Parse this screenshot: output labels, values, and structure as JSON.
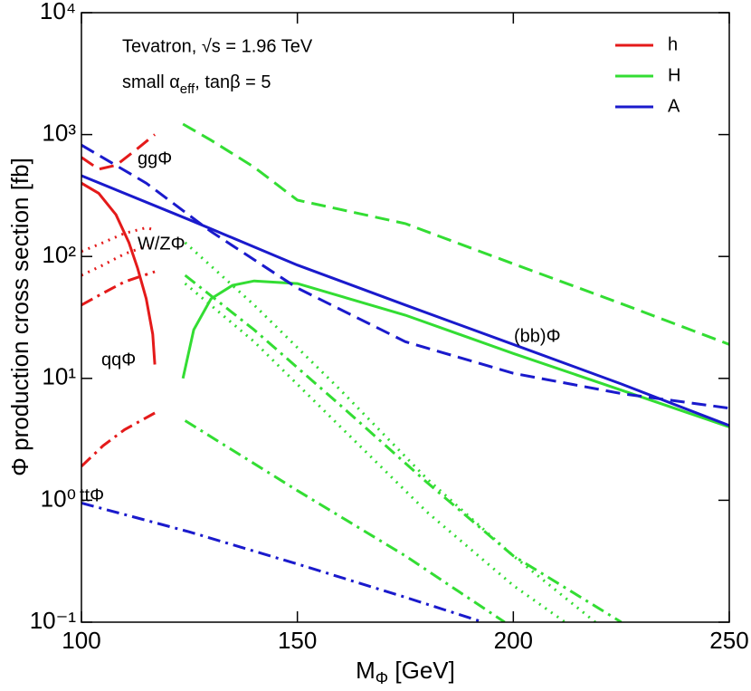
{
  "chart_data": {
    "type": "line",
    "ylog": true,
    "ylabel": "Φ production cross section [fb]",
    "xlabel": "M",
    "xlabel_sub": "Φ",
    "xlabel_end": " [GeV]",
    "note1": "Tevatron, √s = 1.96 TeV",
    "note2": "small α",
    "note2_sub": "eff",
    "note2_end": ", tanβ = 5",
    "annotations": [
      "ggΦ",
      "W/ZΦ",
      "qqΦ",
      "ttΦ",
      "(bb)Φ"
    ],
    "xlim": [
      100,
      250
    ],
    "xticks": [
      100,
      150,
      200,
      250
    ],
    "ylim": [
      0.1,
      10000
    ],
    "yticks": [
      {
        "value": 0.1,
        "label": "10⁻¹"
      },
      {
        "value": 1,
        "label": "10⁰"
      },
      {
        "value": 10,
        "label": "10¹"
      },
      {
        "value": 100,
        "label": "10²"
      },
      {
        "value": 1000,
        "label": "10³"
      },
      {
        "value": 10000,
        "label": "10⁴"
      }
    ],
    "legend": "upper right",
    "series": [
      {
        "name": "h",
        "color": "#e41a1a",
        "curves": [
          {
            "style": "dashed",
            "x": [
              100,
              104,
              108,
              112,
              117
            ],
            "values": [
              650,
              520,
              560,
              720,
              1000
            ]
          },
          {
            "style": "dotted",
            "x": [
              100,
              105,
              110,
              115,
              117
            ],
            "values": [
              110,
              130,
              155,
              172,
              165
            ]
          },
          {
            "style": "dotted",
            "x": [
              100,
              105,
              110,
              116
            ],
            "values": [
              70,
              85,
              105,
              125
            ]
          },
          {
            "style": "dashdot",
            "x": [
              100,
              105,
              110,
              117
            ],
            "values": [
              40,
              50,
              62,
              75
            ]
          },
          {
            "style": "solid",
            "x": [
              100,
              104,
              108,
              111,
              113,
              115,
              116.5,
              117
            ],
            "values": [
              400,
              330,
              220,
              130,
              80,
              45,
              23,
              13
            ]
          },
          {
            "style": "dashdot",
            "x": [
              100,
              105,
              110,
              117
            ],
            "values": [
              1.9,
              2.8,
              3.8,
              5.2
            ]
          }
        ]
      },
      {
        "name": "H",
        "color": "#33dd33",
        "curves": [
          {
            "style": "dashed",
            "x": [
              123.5,
              130,
              140,
              150,
              175,
              200,
              225,
              250
            ],
            "values": [
              1220,
              900,
              540,
              290,
              186,
              87,
              41,
              19
            ]
          },
          {
            "style": "solid",
            "x": [
              123.5,
              126,
              130,
              135,
              140,
              150,
              175,
              200,
              225,
              250
            ],
            "values": [
              10,
              25,
              45,
              58,
              63,
              60,
              33,
              16,
              8,
              4
            ]
          },
          {
            "style": "dotted",
            "x": [
              124,
              140,
              160,
              180,
              200,
              219
            ],
            "values": [
              130,
              40,
              8,
              1.5,
              0.35,
              0.1
            ]
          },
          {
            "style": "dotted",
            "x": [
              124,
              140,
              160,
              180,
              200,
              212
            ],
            "values": [
              60,
              20,
              4,
              0.8,
              0.2,
              0.1
            ]
          },
          {
            "style": "dashdot",
            "x": [
              124,
              140,
              160,
              180,
              200,
              225
            ],
            "values": [
              70,
              25,
              6,
              1.4,
              0.35,
              0.1
            ]
          },
          {
            "style": "dashdot",
            "x": [
              124,
              150,
              175,
              198
            ],
            "values": [
              4.5,
              1.2,
              0.35,
              0.1
            ]
          }
        ]
      },
      {
        "name": "A",
        "color": "#1a1acc",
        "curves": [
          {
            "style": "dashed",
            "x": [
              100,
              115,
              130,
              150,
              175,
              200,
              225,
              250
            ],
            "values": [
              820,
              400,
              160,
              55,
              20,
              11,
              7.5,
              5.7
            ]
          },
          {
            "style": "solid",
            "x": [
              100,
              125,
              150,
              175,
              200,
              225,
              250
            ],
            "values": [
              460,
              200,
              85,
              40,
              19,
              9,
              4.1
            ]
          },
          {
            "style": "dashdot",
            "x": [
              100,
              125,
              150,
              175,
              193
            ],
            "values": [
              0.95,
              0.55,
              0.3,
              0.16,
              0.1
            ]
          }
        ]
      }
    ]
  }
}
